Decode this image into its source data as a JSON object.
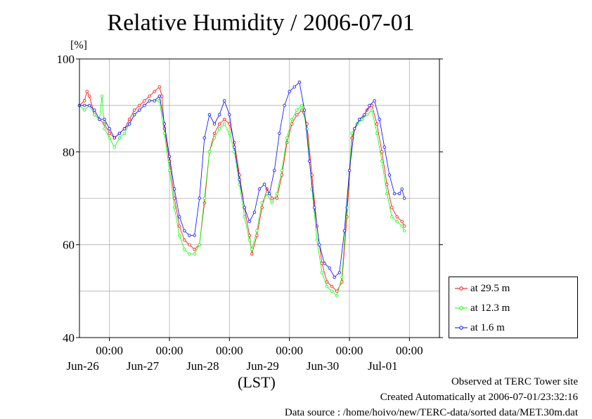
{
  "chart_data": {
    "type": "line",
    "title": "Relative Humidity / 2006-07-01",
    "ylabel": "[%]",
    "xlabel": "(LST)",
    "ylim": [
      40,
      100
    ],
    "yticks": [
      40,
      60,
      80,
      100
    ],
    "xlim": [
      "2006-06-25T12:00",
      "2006-07-01T12:00"
    ],
    "xticks": [
      {
        "time": "2006-06-26T00:00",
        "top": "00:00",
        "bottom": "Jun-26"
      },
      {
        "time": "2006-06-27T00:00",
        "top": "00:00",
        "bottom": "Jun-27"
      },
      {
        "time": "2006-06-28T00:00",
        "top": "00:00",
        "bottom": "Jun-28"
      },
      {
        "time": "2006-06-29T00:00",
        "top": "00:00",
        "bottom": "Jun-29"
      },
      {
        "time": "2006-06-30T00:00",
        "top": "00:00",
        "bottom": "Jun-30"
      },
      {
        "time": "2006-07-01T00:00",
        "top": "00:00",
        "bottom": "Jul-01"
      }
    ],
    "grid": true,
    "legend_position": "bottom-right",
    "series": [
      {
        "name": "at 29.5 m",
        "color": "#ff0000",
        "points": [
          [
            "2006-06-25T12:00",
            90
          ],
          [
            "2006-06-25T14:00",
            91
          ],
          [
            "2006-06-25T15:00",
            93
          ],
          [
            "2006-06-25T16:00",
            92
          ],
          [
            "2006-06-25T18:00",
            88
          ],
          [
            "2006-06-25T20:00",
            87
          ],
          [
            "2006-06-25T22:00",
            86
          ],
          [
            "2006-06-26T00:00",
            84
          ],
          [
            "2006-06-26T02:00",
            83
          ],
          [
            "2006-06-26T04:00",
            84
          ],
          [
            "2006-06-26T06:00",
            85
          ],
          [
            "2006-06-26T08:00",
            87
          ],
          [
            "2006-06-26T10:00",
            89
          ],
          [
            "2006-06-26T12:00",
            90
          ],
          [
            "2006-06-26T14:00",
            91
          ],
          [
            "2006-06-26T16:00",
            92
          ],
          [
            "2006-06-26T18:00",
            93
          ],
          [
            "2006-06-26T20:00",
            94
          ],
          [
            "2006-06-26T21:00",
            92
          ],
          [
            "2006-06-26T22:00",
            85
          ],
          [
            "2006-06-27T00:00",
            78
          ],
          [
            "2006-06-27T02:00",
            70
          ],
          [
            "2006-06-27T04:00",
            64
          ],
          [
            "2006-06-27T06:00",
            61
          ],
          [
            "2006-06-27T08:00",
            60
          ],
          [
            "2006-06-27T10:00",
            59
          ],
          [
            "2006-06-27T12:00",
            60
          ],
          [
            "2006-06-27T14:00",
            69
          ],
          [
            "2006-06-27T16:00",
            80
          ],
          [
            "2006-06-27T18:00",
            84
          ],
          [
            "2006-06-27T20:00",
            86
          ],
          [
            "2006-06-27T22:00",
            87
          ],
          [
            "2006-06-28T00:00",
            86
          ],
          [
            "2006-06-28T02:00",
            82
          ],
          [
            "2006-06-28T04:00",
            75
          ],
          [
            "2006-06-28T06:00",
            68
          ],
          [
            "2006-06-28T08:00",
            62
          ],
          [
            "2006-06-28T09:00",
            58
          ],
          [
            "2006-06-28T11:00",
            62
          ],
          [
            "2006-06-28T13:00",
            68
          ],
          [
            "2006-06-28T15:00",
            72
          ],
          [
            "2006-06-28T17:00",
            70
          ],
          [
            "2006-06-28T19:00",
            70
          ],
          [
            "2006-06-28T21:00",
            75
          ],
          [
            "2006-06-28T23:00",
            82
          ],
          [
            "2006-06-29T01:00",
            86
          ],
          [
            "2006-06-29T03:00",
            88
          ],
          [
            "2006-06-29T05:00",
            89
          ],
          [
            "2006-06-29T07:00",
            86
          ],
          [
            "2006-06-29T09:00",
            75
          ],
          [
            "2006-06-29T11:00",
            64
          ],
          [
            "2006-06-29T13:00",
            56
          ],
          [
            "2006-06-29T15:00",
            52
          ],
          [
            "2006-06-29T17:00",
            51
          ],
          [
            "2006-06-29T19:00",
            50
          ],
          [
            "2006-06-29T21:00",
            52
          ],
          [
            "2006-06-29T23:00",
            66
          ],
          [
            "2006-06-30T01:00",
            83
          ],
          [
            "2006-06-30T03:00",
            86
          ],
          [
            "2006-06-30T05:00",
            87
          ],
          [
            "2006-06-30T07:00",
            89
          ],
          [
            "2006-06-30T09:00",
            90
          ],
          [
            "2006-06-30T11:00",
            86
          ],
          [
            "2006-06-30T13:00",
            80
          ],
          [
            "2006-06-30T15:00",
            73
          ],
          [
            "2006-06-30T17:00",
            68
          ],
          [
            "2006-06-30T19:00",
            66
          ],
          [
            "2006-06-30T21:00",
            65
          ],
          [
            "2006-06-30T22:00",
            64
          ]
        ]
      },
      {
        "name": "at 12.3 m",
        "color": "#00ff00",
        "points": [
          [
            "2006-06-25T12:00",
            90
          ],
          [
            "2006-06-25T14:00",
            89
          ],
          [
            "2006-06-25T16:00",
            90
          ],
          [
            "2006-06-25T18:00",
            88
          ],
          [
            "2006-06-25T20:00",
            87
          ],
          [
            "2006-06-25T21:00",
            92
          ],
          [
            "2006-06-25T22:00",
            85
          ],
          [
            "2006-06-26T00:00",
            83
          ],
          [
            "2006-06-26T02:00",
            81
          ],
          [
            "2006-06-26T04:00",
            83
          ],
          [
            "2006-06-26T06:00",
            84
          ],
          [
            "2006-06-26T08:00",
            86
          ],
          [
            "2006-06-26T10:00",
            88
          ],
          [
            "2006-06-26T12:00",
            89
          ],
          [
            "2006-06-26T14:00",
            90
          ],
          [
            "2006-06-26T16:00",
            91
          ],
          [
            "2006-06-26T18:00",
            91
          ],
          [
            "2006-06-26T20:00",
            91
          ],
          [
            "2006-06-26T22:00",
            84
          ],
          [
            "2006-06-27T00:00",
            76
          ],
          [
            "2006-06-27T02:00",
            68
          ],
          [
            "2006-06-27T04:00",
            62
          ],
          [
            "2006-06-27T06:00",
            59
          ],
          [
            "2006-06-27T08:00",
            58
          ],
          [
            "2006-06-27T10:00",
            58
          ],
          [
            "2006-06-27T12:00",
            60
          ],
          [
            "2006-06-27T14:00",
            70
          ],
          [
            "2006-06-27T16:00",
            80
          ],
          [
            "2006-06-27T18:00",
            83
          ],
          [
            "2006-06-27T20:00",
            85
          ],
          [
            "2006-06-27T22:00",
            86
          ],
          [
            "2006-06-28T00:00",
            84
          ],
          [
            "2006-06-28T02:00",
            80
          ],
          [
            "2006-06-28T04:00",
            73
          ],
          [
            "2006-06-28T06:00",
            66
          ],
          [
            "2006-06-28T08:00",
            61
          ],
          [
            "2006-06-28T09:00",
            59
          ],
          [
            "2006-06-28T11:00",
            63
          ],
          [
            "2006-06-28T13:00",
            69
          ],
          [
            "2006-06-28T15:00",
            71
          ],
          [
            "2006-06-28T17:00",
            69
          ],
          [
            "2006-06-28T19:00",
            71
          ],
          [
            "2006-06-28T21:00",
            76
          ],
          [
            "2006-06-28T23:00",
            83
          ],
          [
            "2006-06-29T01:00",
            87
          ],
          [
            "2006-06-29T03:00",
            89
          ],
          [
            "2006-06-29T05:00",
            90
          ],
          [
            "2006-06-29T07:00",
            85
          ],
          [
            "2006-06-29T09:00",
            72
          ],
          [
            "2006-06-29T11:00",
            61
          ],
          [
            "2006-06-29T13:00",
            54
          ],
          [
            "2006-06-29T15:00",
            51
          ],
          [
            "2006-06-29T17:00",
            50
          ],
          [
            "2006-06-29T19:00",
            49
          ],
          [
            "2006-06-29T21:00",
            53
          ],
          [
            "2006-06-29T23:00",
            68
          ],
          [
            "2006-06-30T01:00",
            84
          ],
          [
            "2006-06-30T03:00",
            86
          ],
          [
            "2006-06-30T05:00",
            87
          ],
          [
            "2006-06-30T07:00",
            88
          ],
          [
            "2006-06-30T09:00",
            89
          ],
          [
            "2006-06-30T11:00",
            84
          ],
          [
            "2006-06-30T13:00",
            78
          ],
          [
            "2006-06-30T15:00",
            71
          ],
          [
            "2006-06-30T17:00",
            66
          ],
          [
            "2006-06-30T19:00",
            65
          ],
          [
            "2006-06-30T21:00",
            64
          ],
          [
            "2006-06-30T22:00",
            63
          ]
        ]
      },
      {
        "name": "at 1.6 m",
        "color": "#0000ff",
        "points": [
          [
            "2006-06-25T12:00",
            90
          ],
          [
            "2006-06-25T14:00",
            90
          ],
          [
            "2006-06-25T16:00",
            90
          ],
          [
            "2006-06-25T18:00",
            89
          ],
          [
            "2006-06-25T20:00",
            87
          ],
          [
            "2006-06-25T22:00",
            87
          ],
          [
            "2006-06-26T00:00",
            85
          ],
          [
            "2006-06-26T02:00",
            83
          ],
          [
            "2006-06-26T04:00",
            84
          ],
          [
            "2006-06-26T06:00",
            85
          ],
          [
            "2006-06-26T08:00",
            86
          ],
          [
            "2006-06-26T10:00",
            88
          ],
          [
            "2006-06-26T12:00",
            89
          ],
          [
            "2006-06-26T14:00",
            90
          ],
          [
            "2006-06-26T16:00",
            91
          ],
          [
            "2006-06-26T18:00",
            91
          ],
          [
            "2006-06-26T20:00",
            92
          ],
          [
            "2006-06-26T22:00",
            86
          ],
          [
            "2006-06-27T00:00",
            79
          ],
          [
            "2006-06-27T02:00",
            72
          ],
          [
            "2006-06-27T04:00",
            66
          ],
          [
            "2006-06-27T06:00",
            63
          ],
          [
            "2006-06-27T08:00",
            62
          ],
          [
            "2006-06-27T10:00",
            62
          ],
          [
            "2006-06-27T12:00",
            70
          ],
          [
            "2006-06-27T14:00",
            83
          ],
          [
            "2006-06-27T16:00",
            88
          ],
          [
            "2006-06-27T18:00",
            86
          ],
          [
            "2006-06-27T20:00",
            88
          ],
          [
            "2006-06-27T22:00",
            91
          ],
          [
            "2006-06-28T00:00",
            88
          ],
          [
            "2006-06-28T02:00",
            81
          ],
          [
            "2006-06-28T04:00",
            74
          ],
          [
            "2006-06-28T06:00",
            68
          ],
          [
            "2006-06-28T08:00",
            65
          ],
          [
            "2006-06-28T10:00",
            67
          ],
          [
            "2006-06-28T12:00",
            72
          ],
          [
            "2006-06-28T14:00",
            73
          ],
          [
            "2006-06-28T16:00",
            71
          ],
          [
            "2006-06-28T18:00",
            76
          ],
          [
            "2006-06-28T20:00",
            84
          ],
          [
            "2006-06-28T22:00",
            90
          ],
          [
            "2006-06-29T00:00",
            93
          ],
          [
            "2006-06-29T02:00",
            94
          ],
          [
            "2006-06-29T04:00",
            95
          ],
          [
            "2006-06-29T06:00",
            89
          ],
          [
            "2006-06-29T08:00",
            78
          ],
          [
            "2006-06-29T10:00",
            68
          ],
          [
            "2006-06-29T12:00",
            60
          ],
          [
            "2006-06-29T14:00",
            56
          ],
          [
            "2006-06-29T16:00",
            55
          ],
          [
            "2006-06-29T18:00",
            53
          ],
          [
            "2006-06-29T20:00",
            54
          ],
          [
            "2006-06-29T22:00",
            63
          ],
          [
            "2006-06-30T00:00",
            76
          ],
          [
            "2006-06-30T02:00",
            85
          ],
          [
            "2006-06-30T04:00",
            87
          ],
          [
            "2006-06-30T06:00",
            88
          ],
          [
            "2006-06-30T08:00",
            90
          ],
          [
            "2006-06-30T10:00",
            91
          ],
          [
            "2006-06-30T12:00",
            87
          ],
          [
            "2006-06-30T14:00",
            81
          ],
          [
            "2006-06-30T16:00",
            75
          ],
          [
            "2006-06-30T18:00",
            71
          ],
          [
            "2006-06-30T20:00",
            71
          ],
          [
            "2006-06-30T21:00",
            72
          ],
          [
            "2006-06-30T22:00",
            70
          ]
        ]
      }
    ]
  },
  "legend": {
    "items": [
      {
        "label": "at 29.5 m",
        "color": "#ff0000"
      },
      {
        "label": "at 12.3 m",
        "color": "#00ff00"
      },
      {
        "label": "at 1.6 m",
        "color": "#0000ff"
      }
    ]
  },
  "footer": {
    "observed": "Observed at TERC Tower site",
    "created": "Created Automatically at 2006-07-01/23:32:16",
    "source": "Data source : /home/hoivo/new/TERC-data/sorted  data/MET.30m.dat"
  }
}
